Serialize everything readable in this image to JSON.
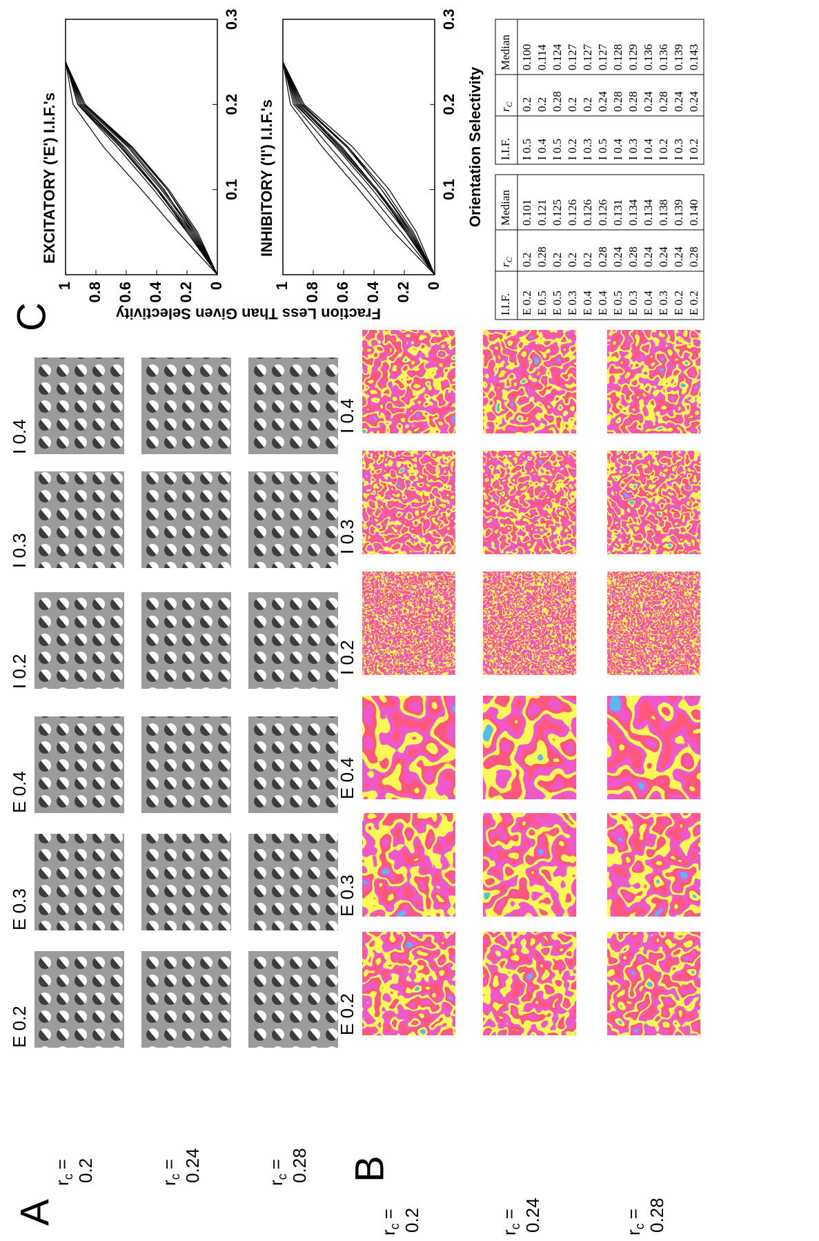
{
  "panel_a": {
    "label": "A",
    "columns": [
      "E 0.2",
      "E 0.3",
      "E 0.4",
      "I 0.2",
      "I 0.3",
      "I 0.4"
    ],
    "row_var": "r",
    "row_sub": "c",
    "row_eq": "=",
    "rows": [
      "0.2",
      "0.24",
      "0.28"
    ]
  },
  "panel_b": {
    "label": "B",
    "columns": [
      "E 0.2",
      "E 0.3",
      "E 0.4",
      "I 0.2",
      "I 0.3",
      "I 0.4"
    ],
    "row_var": "r",
    "row_sub": "c",
    "row_eq": "=",
    "rows": [
      "0.2",
      "0.24",
      "0.28"
    ]
  },
  "panel_c": {
    "label": "C",
    "y_label": "Fraction Less Than Given Selectivity",
    "x_label": "Orientation Selectivity"
  },
  "chart_data": [
    {
      "type": "line",
      "title": "EXCITATORY ('E') I.I.F.'s",
      "color": "#000000",
      "x": [
        0,
        0.05,
        0.1,
        0.15,
        0.2,
        0.25
      ],
      "xlim": [
        0,
        0.3
      ],
      "ylim": [
        0,
        1
      ],
      "xticks": [
        0.1,
        0.2,
        0.3
      ],
      "yticks": [
        0,
        0.2,
        0.4,
        0.6,
        0.8,
        1
      ],
      "series": [
        {
          "values": [
            0,
            0.26,
            0.5,
            0.75,
            0.95,
            1
          ]
        },
        {
          "values": [
            0,
            0.2,
            0.42,
            0.66,
            0.92,
            1
          ]
        },
        {
          "values": [
            0,
            0.18,
            0.4,
            0.64,
            0.91,
            1
          ]
        },
        {
          "values": [
            0,
            0.19,
            0.4,
            0.63,
            0.9,
            1
          ]
        },
        {
          "values": [
            0,
            0.17,
            0.39,
            0.64,
            0.92,
            1
          ]
        },
        {
          "values": [
            0,
            0.2,
            0.39,
            0.62,
            0.9,
            1
          ]
        },
        {
          "values": [
            0,
            0.16,
            0.37,
            0.61,
            0.9,
            1
          ]
        },
        {
          "values": [
            0,
            0.15,
            0.36,
            0.59,
            0.89,
            1
          ]
        },
        {
          "values": [
            0,
            0.17,
            0.35,
            0.58,
            0.88,
            1
          ]
        },
        {
          "values": [
            0,
            0.14,
            0.33,
            0.57,
            0.88,
            1
          ]
        },
        {
          "values": [
            0,
            0.15,
            0.33,
            0.56,
            0.87,
            1
          ]
        },
        {
          "values": [
            0,
            0.13,
            0.32,
            0.56,
            0.88,
            1
          ]
        }
      ]
    },
    {
      "type": "line",
      "title": "INHIBITORY ('I') I.I.F.'s",
      "color": "#000000",
      "x": [
        0,
        0.05,
        0.1,
        0.15,
        0.2,
        0.25
      ],
      "xlim": [
        0,
        0.3
      ],
      "ylim": [
        0,
        1
      ],
      "xticks": [
        0.1,
        0.2,
        0.3
      ],
      "yticks": [
        0,
        0.2,
        0.4,
        0.6,
        0.8,
        1
      ],
      "series": [
        {
          "values": [
            0,
            0.27,
            0.5,
            0.74,
            0.95,
            1
          ]
        },
        {
          "values": [
            0,
            0.22,
            0.45,
            0.69,
            0.93,
            1
          ]
        },
        {
          "values": [
            0,
            0.19,
            0.41,
            0.65,
            0.91,
            1
          ]
        },
        {
          "values": [
            0,
            0.18,
            0.39,
            0.63,
            0.9,
            1
          ]
        },
        {
          "values": [
            0,
            0.17,
            0.39,
            0.64,
            0.92,
            1
          ]
        },
        {
          "values": [
            0,
            0.19,
            0.38,
            0.62,
            0.9,
            1
          ]
        },
        {
          "values": [
            0,
            0.18,
            0.38,
            0.61,
            0.89,
            1
          ]
        },
        {
          "values": [
            0,
            0.16,
            0.38,
            0.62,
            0.9,
            1
          ]
        },
        {
          "values": [
            0,
            0.15,
            0.35,
            0.58,
            0.88,
            1
          ]
        },
        {
          "values": [
            0,
            0.16,
            0.35,
            0.57,
            0.87,
            1
          ]
        },
        {
          "values": [
            0,
            0.14,
            0.33,
            0.57,
            0.88,
            1
          ]
        },
        {
          "values": [
            0,
            0.12,
            0.3,
            0.54,
            0.86,
            1
          ]
        }
      ]
    }
  ],
  "tables": [
    {
      "header": [
        "I.I.F.",
        "r",
        "Median"
      ],
      "header_sub": "C",
      "rows": [
        [
          "E 0.2",
          "0.2",
          "0.101"
        ],
        [
          "E 0.5",
          "0.28",
          "0.121"
        ],
        [
          "E 0.5",
          "0.2",
          "0.125"
        ],
        [
          "E 0.3",
          "0.2",
          "0.126"
        ],
        [
          "E 0.4",
          "0.2",
          "0.126"
        ],
        [
          "E 0.4",
          "0.28",
          "0.126"
        ],
        [
          "E 0.5",
          "0.24",
          "0.131"
        ],
        [
          "E 0.3",
          "0.28",
          "0.134"
        ],
        [
          "E 0.4",
          "0.24",
          "0.134"
        ],
        [
          "E 0.3",
          "0.24",
          "0.138"
        ],
        [
          "E 0.2",
          "0.24",
          "0.139"
        ],
        [
          "E 0.2",
          "0.28",
          "0.140"
        ]
      ]
    },
    {
      "header": [
        "I.I.F.",
        "r",
        "Median"
      ],
      "header_sub": "C",
      "rows": [
        [
          "I 0.5",
          "0.2",
          "0.100"
        ],
        [
          "I 0.4",
          "0.2",
          "0.114"
        ],
        [
          "I 0.5",
          "0.28",
          "0.124"
        ],
        [
          "I 0.2",
          "0.2",
          "0.127"
        ],
        [
          "I 0.3",
          "0.2",
          "0.127"
        ],
        [
          "I 0.5",
          "0.24",
          "0.127"
        ],
        [
          "I 0.4",
          "0.28",
          "0.128"
        ],
        [
          "I 0.3",
          "0.28",
          "0.129"
        ],
        [
          "I 0.4",
          "0.24",
          "0.136"
        ],
        [
          "I 0.2",
          "0.28",
          "0.136"
        ],
        [
          "I 0.3",
          "0.24",
          "0.139"
        ],
        [
          "I 0.2",
          "0.24",
          "0.143"
        ]
      ]
    }
  ]
}
